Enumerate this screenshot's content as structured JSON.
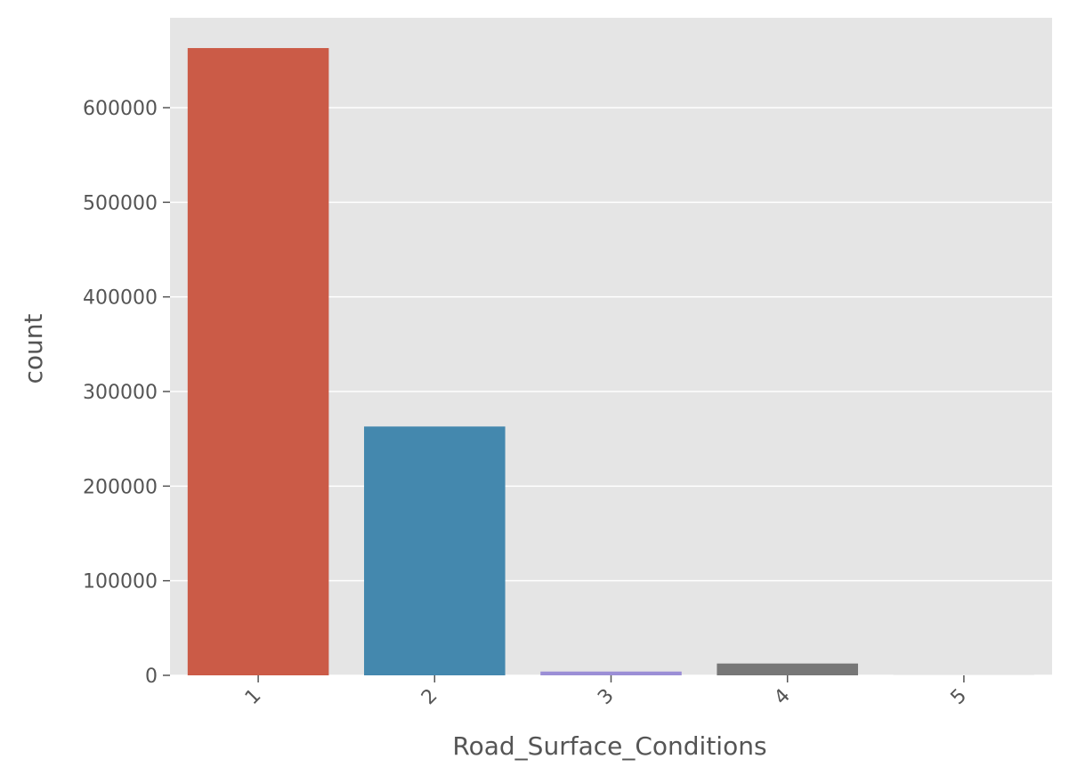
{
  "chart_data": {
    "type": "bar",
    "categories": [
      "1",
      "2",
      "3",
      "4",
      "5"
    ],
    "values": [
      663000,
      263000,
      4000,
      12500,
      600
    ],
    "colors": [
      "#cb5b47",
      "#4488ae",
      "#9b8ed6",
      "#777777",
      "#f0f0f0"
    ],
    "title": "",
    "xlabel": "Road_Surface_Conditions",
    "ylabel": "count",
    "ylim": [
      0,
      695000
    ],
    "yticks": [
      0,
      100000,
      200000,
      300000,
      400000,
      500000,
      600000
    ],
    "ytick_labels": [
      "0",
      "100000",
      "200000",
      "300000",
      "400000",
      "500000",
      "600000"
    ],
    "grid": true,
    "plot_background": "#e5e5e5",
    "grid_color": "#ffffff",
    "xtick_rotation_deg": -45
  }
}
